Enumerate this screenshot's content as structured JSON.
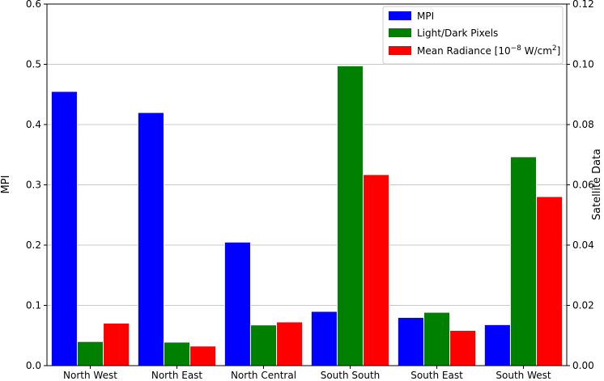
{
  "chart_data": {
    "type": "bar",
    "categories": [
      "North West",
      "North East",
      "North Central",
      "South South",
      "South East",
      "South West"
    ],
    "series": [
      {
        "name": "MPI",
        "axis": "left",
        "color": "#0000ff",
        "values": [
          0.455,
          0.42,
          0.205,
          0.09,
          0.08,
          0.068
        ]
      },
      {
        "name": "Light/Dark Pixels",
        "axis": "right",
        "color": "#008000",
        "values": [
          0.008,
          0.0078,
          0.0135,
          0.0995,
          0.0177,
          0.0693
        ]
      },
      {
        "name": "Mean Radiance",
        "name_unit_prefix": "10",
        "name_unit_exp": "−8",
        "name_unit_mid": " W/cm",
        "name_unit_exp2": "2",
        "axis": "right",
        "color": "#ff0000",
        "values": [
          0.0141,
          0.0065,
          0.0145,
          0.0634,
          0.0117,
          0.0561
        ]
      }
    ],
    "ylabel": "MPI",
    "y2label": "Satellite Data",
    "ylim": [
      0,
      0.6
    ],
    "y2lim": [
      0,
      0.12
    ],
    "yticks": [
      "0.0",
      "0.1",
      "0.2",
      "0.3",
      "0.4",
      "0.5",
      "0.6"
    ],
    "y2ticks": [
      "0.00",
      "0.02",
      "0.04",
      "0.06",
      "0.08",
      "0.10",
      "0.12"
    ],
    "grid": true,
    "legend_placement": "top-right"
  }
}
